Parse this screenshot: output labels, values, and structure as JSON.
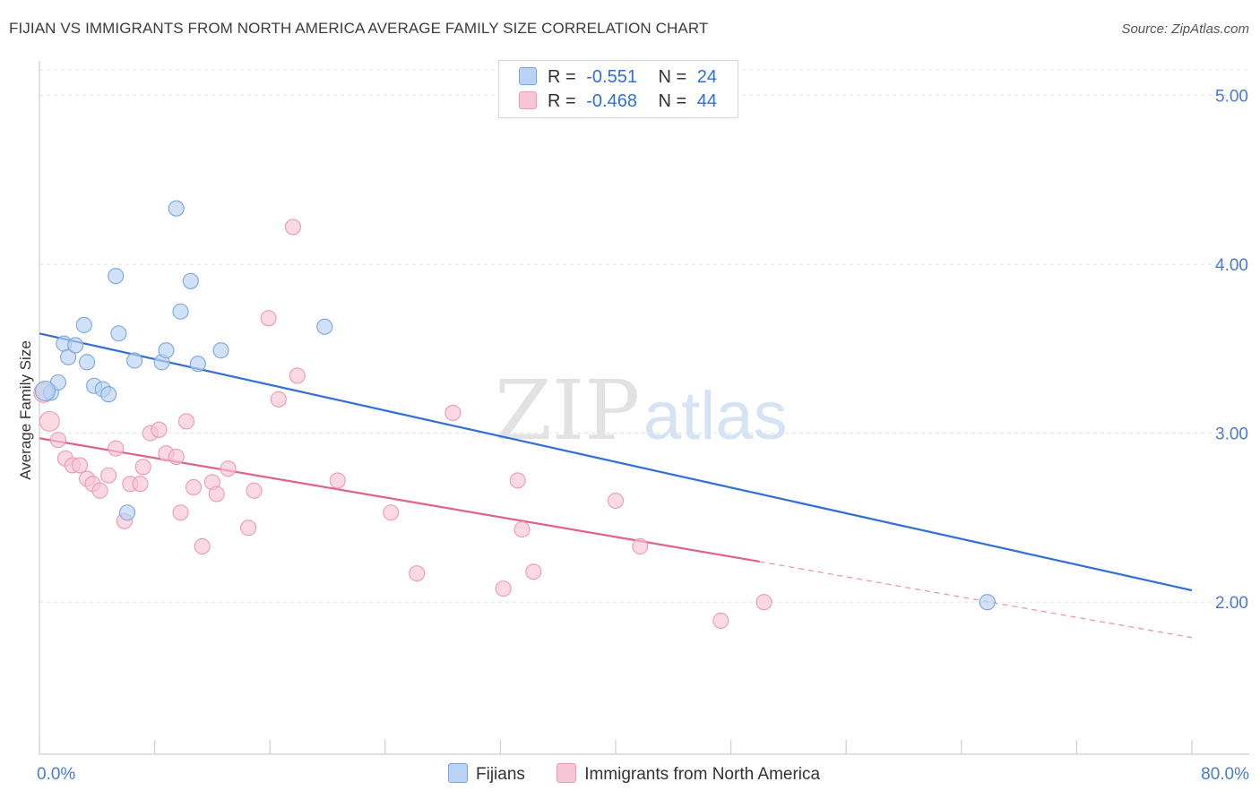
{
  "header": {
    "title": "FIJIAN VS IMMIGRANTS FROM NORTH AMERICA AVERAGE FAMILY SIZE CORRELATION CHART",
    "source": "Source: ZipAtlas.com"
  },
  "watermark": {
    "zip": "ZIP",
    "atlas": "atlas"
  },
  "legend": {
    "rows": [
      {
        "r_label": "R =",
        "r_value": "-0.551",
        "n_label": "N =",
        "n_value": "24"
      },
      {
        "r_label": "R =",
        "r_value": "-0.468",
        "n_label": "N =",
        "n_value": "44"
      }
    ]
  },
  "colors": {
    "fijians_fill": "#b8d3f4",
    "fijians_stroke": "#7aa6e0",
    "fijians_line": "#2f6fd6",
    "immigrants_fill": "#f8c5d4",
    "immigrants_stroke": "#ec9ab3",
    "immigrants_line": "#e0608f",
    "tick": "#4a7bd0",
    "grid": "#e2e2e2"
  },
  "chart_data": {
    "type": "scatter",
    "title": "FIJIAN VS IMMIGRANTS FROM NORTH AMERICA AVERAGE FAMILY SIZE CORRELATION CHART",
    "xlabel": "",
    "ylabel": "Average Family Size",
    "xlim": [
      0,
      80
    ],
    "ylim": [
      1.1,
      5.15
    ],
    "x_tick_labels": [
      "0.0%",
      "80.0%"
    ],
    "y_ticks": [
      2.0,
      3.0,
      4.0,
      5.0
    ],
    "y_tick_labels": [
      "2.00",
      "3.00",
      "4.00",
      "5.00"
    ],
    "grid": true,
    "legend_position": "top-center",
    "series": [
      {
        "name": "Fijians",
        "r": -0.551,
        "n": 24,
        "trend": {
          "x": [
            0,
            80
          ],
          "y": [
            3.59,
            2.07
          ]
        },
        "points": [
          {
            "x": 0.8,
            "y": 3.24
          },
          {
            "x": 1.3,
            "y": 3.3
          },
          {
            "x": 1.7,
            "y": 3.53
          },
          {
            "x": 2.0,
            "y": 3.45
          },
          {
            "x": 2.5,
            "y": 3.52
          },
          {
            "x": 3.1,
            "y": 3.64
          },
          {
            "x": 3.3,
            "y": 3.42
          },
          {
            "x": 3.8,
            "y": 3.28
          },
          {
            "x": 4.4,
            "y": 3.26
          },
          {
            "x": 4.8,
            "y": 3.23
          },
          {
            "x": 5.3,
            "y": 3.93
          },
          {
            "x": 5.5,
            "y": 3.59
          },
          {
            "x": 6.1,
            "y": 2.53
          },
          {
            "x": 6.6,
            "y": 3.43
          },
          {
            "x": 8.5,
            "y": 3.42
          },
          {
            "x": 8.8,
            "y": 3.49
          },
          {
            "x": 9.5,
            "y": 4.33
          },
          {
            "x": 9.8,
            "y": 3.72
          },
          {
            "x": 10.5,
            "y": 3.9
          },
          {
            "x": 11.0,
            "y": 3.41
          },
          {
            "x": 12.6,
            "y": 3.49
          },
          {
            "x": 19.8,
            "y": 3.63
          },
          {
            "x": 65.8,
            "y": 2.0
          },
          {
            "x": 0.4,
            "y": 3.25
          }
        ]
      },
      {
        "name": "Immigrants from North America",
        "r": -0.468,
        "n": 44,
        "trend": {
          "x": [
            0,
            50
          ],
          "y": [
            2.97,
            2.24
          ]
        },
        "trend_dashed": {
          "x": [
            50,
            80
          ],
          "y": [
            2.24,
            1.79
          ]
        },
        "points": [
          {
            "x": 0.3,
            "y": 3.24
          },
          {
            "x": 0.7,
            "y": 3.07
          },
          {
            "x": 1.3,
            "y": 2.96
          },
          {
            "x": 1.8,
            "y": 2.85
          },
          {
            "x": 2.3,
            "y": 2.81
          },
          {
            "x": 2.8,
            "y": 2.81
          },
          {
            "x": 3.3,
            "y": 2.73
          },
          {
            "x": 3.7,
            "y": 2.7
          },
          {
            "x": 4.2,
            "y": 2.66
          },
          {
            "x": 4.8,
            "y": 2.75
          },
          {
            "x": 5.3,
            "y": 2.91
          },
          {
            "x": 5.9,
            "y": 2.48
          },
          {
            "x": 6.3,
            "y": 2.7
          },
          {
            "x": 7.0,
            "y": 2.7
          },
          {
            "x": 7.2,
            "y": 2.8
          },
          {
            "x": 7.7,
            "y": 3.0
          },
          {
            "x": 8.3,
            "y": 3.02
          },
          {
            "x": 8.8,
            "y": 2.88
          },
          {
            "x": 9.5,
            "y": 2.86
          },
          {
            "x": 9.8,
            "y": 2.53
          },
          {
            "x": 10.2,
            "y": 3.07
          },
          {
            "x": 10.7,
            "y": 2.68
          },
          {
            "x": 11.3,
            "y": 2.33
          },
          {
            "x": 12.0,
            "y": 2.71
          },
          {
            "x": 12.3,
            "y": 2.64
          },
          {
            "x": 13.1,
            "y": 2.79
          },
          {
            "x": 14.5,
            "y": 2.44
          },
          {
            "x": 14.9,
            "y": 2.66
          },
          {
            "x": 15.9,
            "y": 3.68
          },
          {
            "x": 16.6,
            "y": 3.2
          },
          {
            "x": 17.6,
            "y": 4.22
          },
          {
            "x": 17.9,
            "y": 3.34
          },
          {
            "x": 20.7,
            "y": 2.72
          },
          {
            "x": 24.4,
            "y": 2.53
          },
          {
            "x": 26.2,
            "y": 2.17
          },
          {
            "x": 28.7,
            "y": 3.12
          },
          {
            "x": 32.2,
            "y": 2.08
          },
          {
            "x": 33.2,
            "y": 2.72
          },
          {
            "x": 33.5,
            "y": 2.43
          },
          {
            "x": 34.3,
            "y": 2.18
          },
          {
            "x": 40.0,
            "y": 2.6
          },
          {
            "x": 41.7,
            "y": 2.33
          },
          {
            "x": 47.3,
            "y": 1.89
          },
          {
            "x": 50.3,
            "y": 2.0
          }
        ]
      }
    ]
  }
}
